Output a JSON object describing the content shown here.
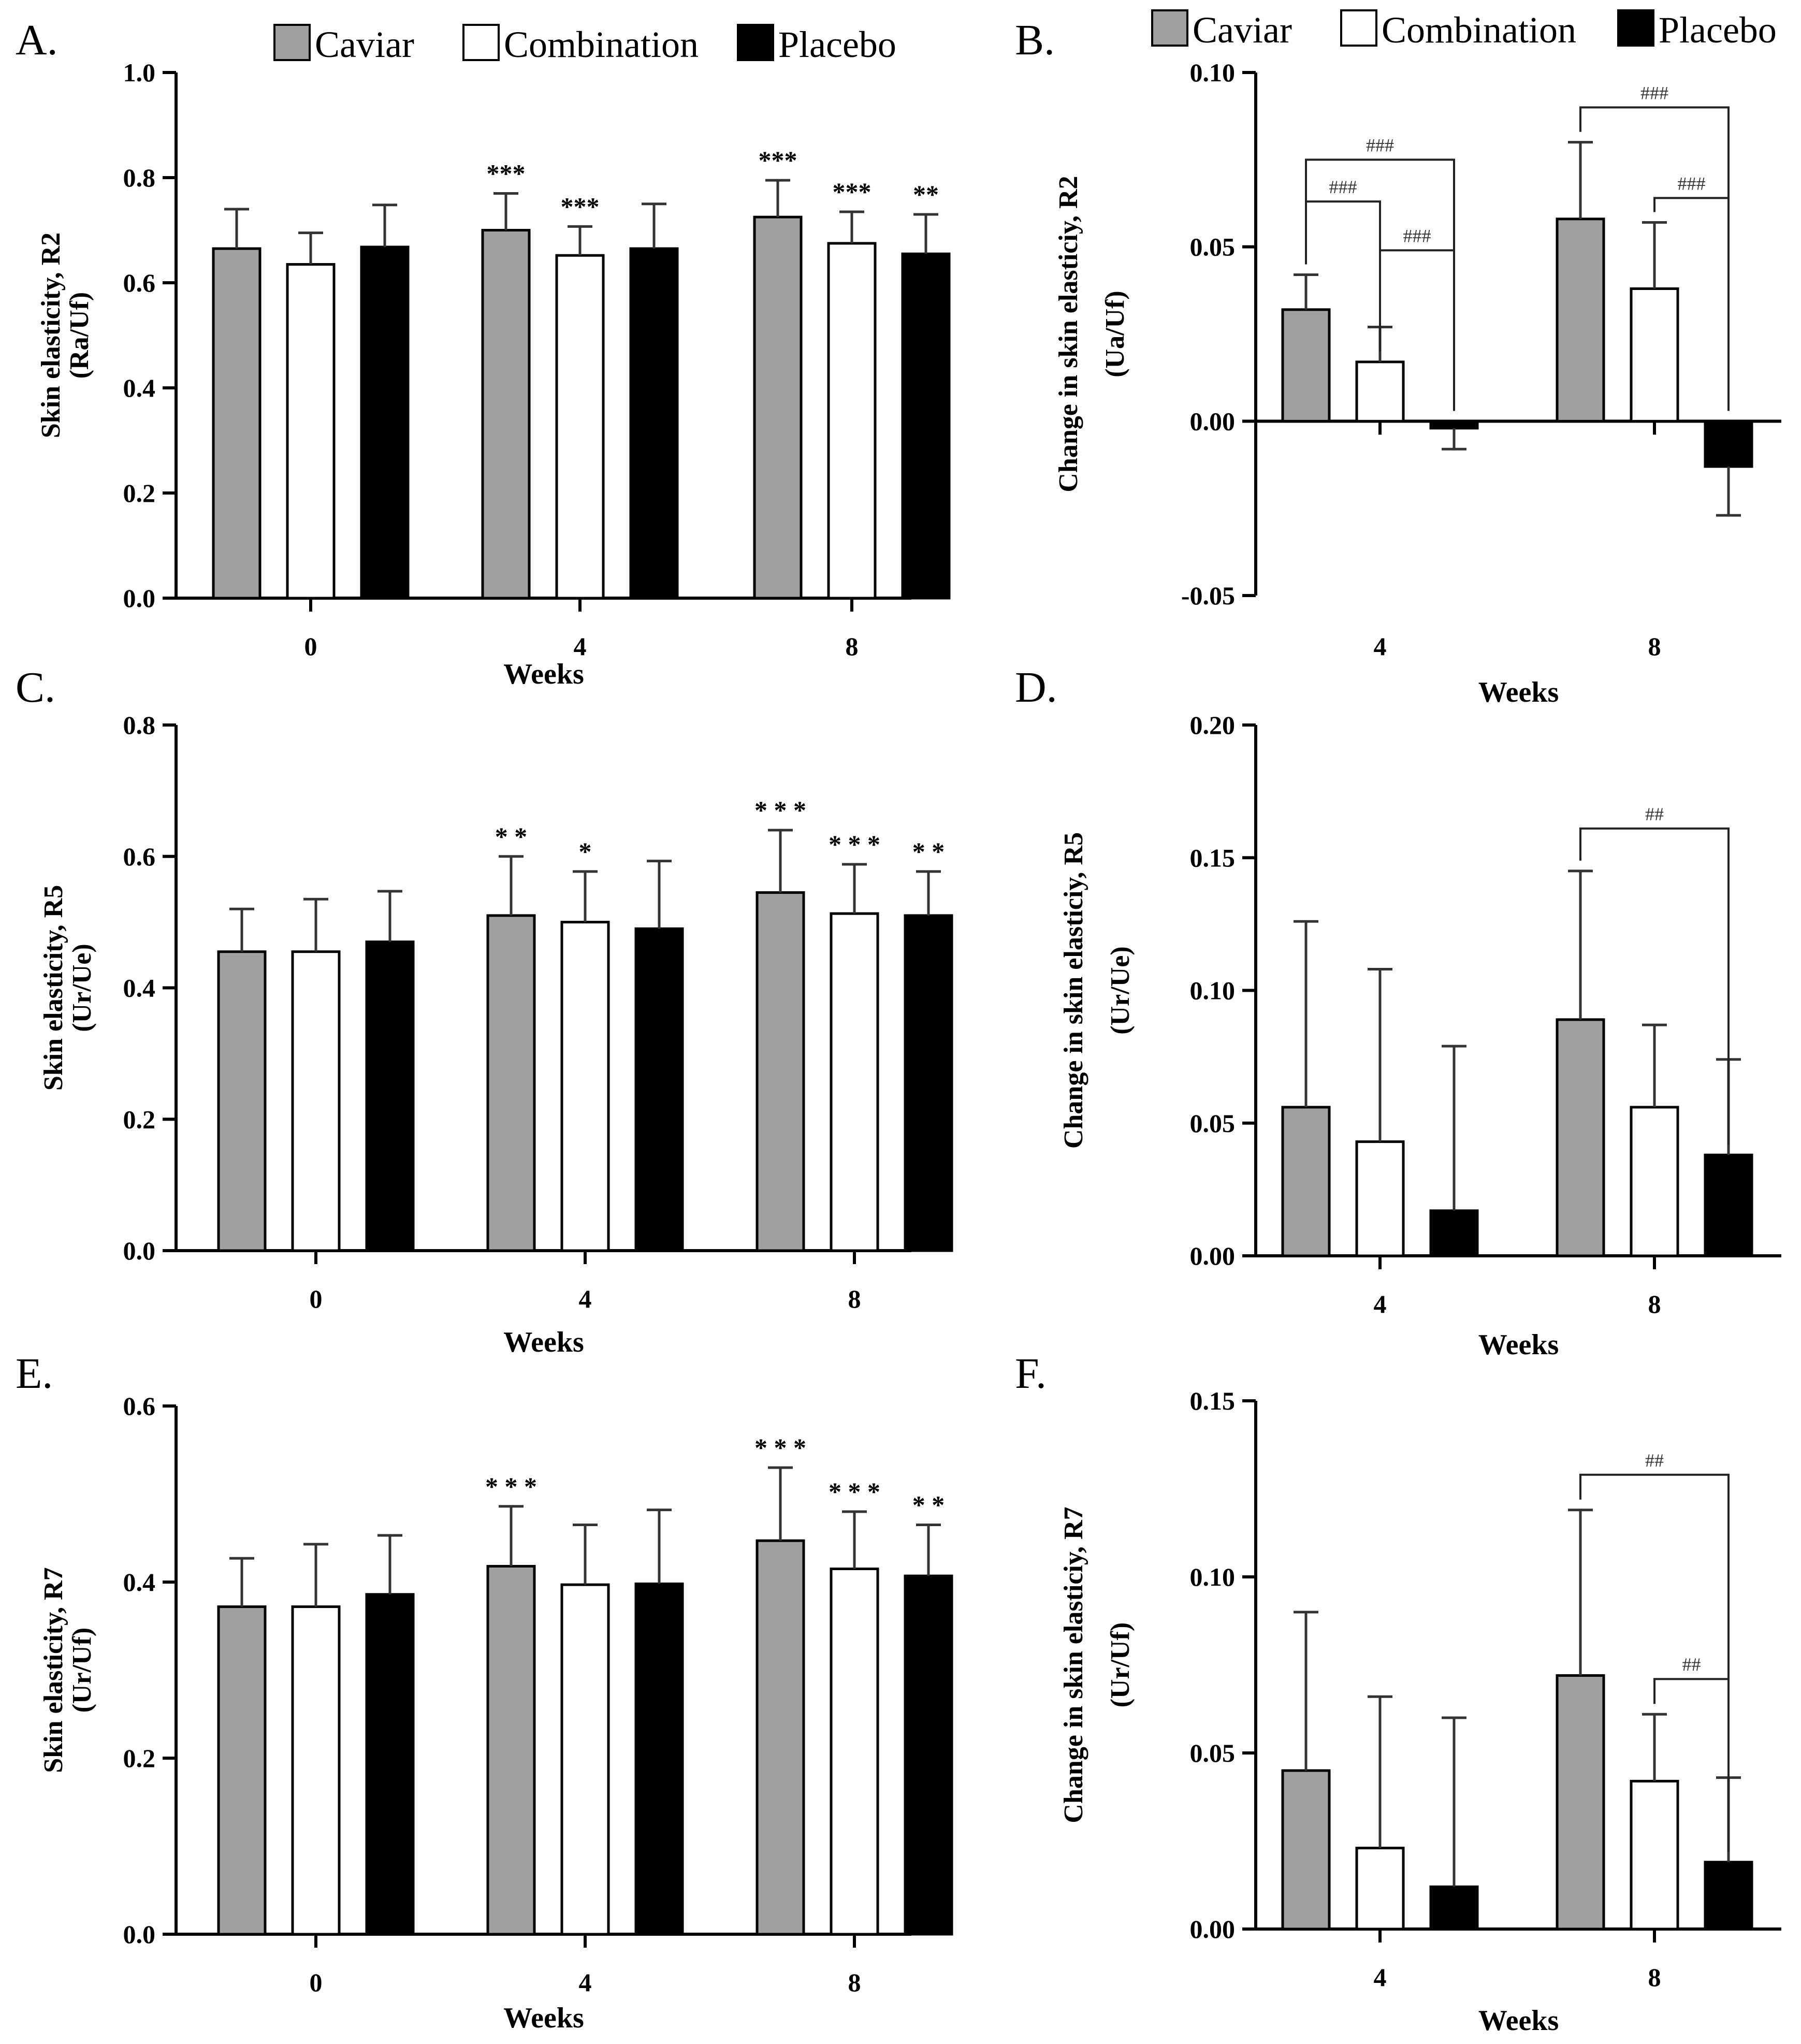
{
  "legend": [
    {
      "name": "Caviar",
      "color": "#a0a0a0"
    },
    {
      "name": "Combination",
      "color": "#ffffff"
    },
    {
      "name": "Placebo",
      "color": "#000000"
    }
  ],
  "chart_data": [
    {
      "id": "A",
      "panel_label": "A.",
      "type": "bar",
      "title": "",
      "xlabel": "Weeks",
      "ylabel_lines": [
        "Skin elasticity, R2",
        "(Ra/Uf)"
      ],
      "categories": [
        "0",
        "4",
        "8"
      ],
      "ylim": [
        0,
        1.0
      ],
      "yticks": [
        "0.0",
        "0.2",
        "0.4",
        "0.6",
        "0.8",
        "1.0"
      ],
      "ytick_values": [
        0,
        0.2,
        0.4,
        0.6,
        0.8,
        1.0
      ],
      "series": [
        {
          "name": "Caviar",
          "values": [
            0.665,
            0.7,
            0.725
          ],
          "errors": [
            0.075,
            0.07,
            0.07
          ]
        },
        {
          "name": "Combination",
          "values": [
            0.635,
            0.652,
            0.675
          ],
          "errors": [
            0.06,
            0.055,
            0.06
          ]
        },
        {
          "name": "Placebo",
          "values": [
            0.668,
            0.665,
            0.655
          ],
          "errors": [
            0.08,
            0.085,
            0.075
          ]
        }
      ],
      "annotations": [
        {
          "series": 0,
          "category": 1,
          "text": "***"
        },
        {
          "series": 1,
          "category": 1,
          "text": "***"
        },
        {
          "series": 0,
          "category": 2,
          "text": "***"
        },
        {
          "series": 1,
          "category": 2,
          "text": "***"
        },
        {
          "series": 2,
          "category": 2,
          "text": "**"
        }
      ],
      "brackets": []
    },
    {
      "id": "B",
      "panel_label": "B.",
      "type": "bar",
      "title": "",
      "xlabel": "Weeks",
      "ylabel_lines": [
        "Change in skin elasticiy, R2",
        "(Ua/Uf)"
      ],
      "categories": [
        "4",
        "8"
      ],
      "ylim": [
        -0.05,
        0.1
      ],
      "yticks": [
        "-0.05",
        "0.00",
        "0.05",
        "0.10"
      ],
      "ytick_values": [
        -0.05,
        0.0,
        0.05,
        0.1
      ],
      "series": [
        {
          "name": "Caviar",
          "values": [
            0.032,
            0.058
          ],
          "errors": [
            0.01,
            0.022
          ]
        },
        {
          "name": "Combination",
          "values": [
            0.017,
            0.038
          ],
          "errors": [
            0.01,
            0.019
          ]
        },
        {
          "name": "Placebo",
          "values": [
            -0.002,
            -0.013
          ],
          "errors": [
            0.006,
            0.014
          ]
        }
      ],
      "annotations": [],
      "brackets": [
        {
          "category": 0,
          "from": 0,
          "to": 1,
          "level": 0.063,
          "text": "###"
        },
        {
          "category": 0,
          "from": 1,
          "to": 2,
          "level": 0.049,
          "text": "###"
        },
        {
          "category": 0,
          "from": 0,
          "to": 2,
          "level": 0.075,
          "text": "###"
        },
        {
          "category": 1,
          "from": 1,
          "to": 2,
          "level": 0.064,
          "text": "###"
        },
        {
          "category": 1,
          "from": 0,
          "to": 2,
          "level": 0.09,
          "text": "###"
        }
      ]
    },
    {
      "id": "C",
      "panel_label": "C.",
      "type": "bar",
      "title": "",
      "xlabel": "Weeks",
      "ylabel_lines": [
        "Skin elasticity, R5",
        "(Ur/Ue)"
      ],
      "categories": [
        "0",
        "4",
        "8"
      ],
      "ylim": [
        0,
        0.8
      ],
      "yticks": [
        "0.0",
        "0.2",
        "0.4",
        "0.6",
        "0.8"
      ],
      "ytick_values": [
        0,
        0.2,
        0.4,
        0.6,
        0.8
      ],
      "series": [
        {
          "name": "Caviar",
          "values": [
            0.455,
            0.51,
            0.545
          ],
          "errors": [
            0.065,
            0.09,
            0.095
          ]
        },
        {
          "name": "Combination",
          "values": [
            0.455,
            0.5,
            0.513
          ],
          "errors": [
            0.08,
            0.077,
            0.075
          ]
        },
        {
          "name": "Placebo",
          "values": [
            0.47,
            0.49,
            0.51
          ],
          "errors": [
            0.077,
            0.103,
            0.067
          ]
        }
      ],
      "annotations": [
        {
          "series": 0,
          "category": 1,
          "text": "* *"
        },
        {
          "series": 1,
          "category": 1,
          "text": "*"
        },
        {
          "series": 0,
          "category": 2,
          "text": "* * *"
        },
        {
          "series": 1,
          "category": 2,
          "text": "* * *"
        },
        {
          "series": 2,
          "category": 2,
          "text": "* *"
        }
      ],
      "brackets": []
    },
    {
      "id": "D",
      "panel_label": "D.",
      "type": "bar",
      "title": "",
      "xlabel": "Weeks",
      "ylabel_lines": [
        "Change in skin elasticiy, R5",
        "(Ur/Ue)"
      ],
      "categories": [
        "4",
        "8"
      ],
      "ylim": [
        0,
        0.2
      ],
      "yticks": [
        "0.00",
        "0.05",
        "0.10",
        "0.15",
        "0.20"
      ],
      "ytick_values": [
        0,
        0.05,
        0.1,
        0.15,
        0.2
      ],
      "series": [
        {
          "name": "Caviar",
          "values": [
            0.056,
            0.089
          ],
          "errors": [
            0.07,
            0.056
          ]
        },
        {
          "name": "Combination",
          "values": [
            0.043,
            0.056
          ],
          "errors": [
            0.065,
            0.031
          ]
        },
        {
          "name": "Placebo",
          "values": [
            0.017,
            0.038
          ],
          "errors": [
            0.062,
            0.036
          ]
        }
      ],
      "annotations": [],
      "brackets": [
        {
          "category": 1,
          "from": 0,
          "to": 2,
          "level": 0.161,
          "text": "##"
        }
      ]
    },
    {
      "id": "E",
      "panel_label": "E.",
      "type": "bar",
      "title": "",
      "xlabel": "Weeks",
      "ylabel_lines": [
        "Skin elasticity, R7",
        "(Ur/Uf)"
      ],
      "categories": [
        "0",
        "4",
        "8"
      ],
      "ylim": [
        0,
        0.6
      ],
      "yticks": [
        "0.0",
        "0.2",
        "0.4",
        "0.6"
      ],
      "ytick_values": [
        0,
        0.2,
        0.4,
        0.6
      ],
      "series": [
        {
          "name": "Caviar",
          "values": [
            0.372,
            0.418,
            0.447
          ],
          "errors": [
            0.055,
            0.068,
            0.083
          ]
        },
        {
          "name": "Combination",
          "values": [
            0.372,
            0.397,
            0.415
          ],
          "errors": [
            0.071,
            0.068,
            0.065
          ]
        },
        {
          "name": "Placebo",
          "values": [
            0.386,
            0.398,
            0.407
          ],
          "errors": [
            0.067,
            0.084,
            0.058
          ]
        }
      ],
      "annotations": [
        {
          "series": 0,
          "category": 1,
          "text": "* * *"
        },
        {
          "series": 0,
          "category": 2,
          "text": "* * *"
        },
        {
          "series": 1,
          "category": 2,
          "text": "* * *"
        },
        {
          "series": 2,
          "category": 2,
          "text": "* *"
        }
      ],
      "brackets": []
    },
    {
      "id": "F",
      "panel_label": "F.",
      "type": "bar",
      "title": "",
      "xlabel": "Weeks",
      "ylabel_lines": [
        "Change in skin elasticiy, R7",
        "(Ur/Uf)"
      ],
      "categories": [
        "4",
        "8"
      ],
      "ylim": [
        0,
        0.15
      ],
      "yticks": [
        "0.00",
        "0.05",
        "0.10",
        "0.15"
      ],
      "ytick_values": [
        0,
        0.05,
        0.1,
        0.15
      ],
      "series": [
        {
          "name": "Caviar",
          "values": [
            0.045,
            0.072
          ],
          "errors": [
            0.045,
            0.047
          ]
        },
        {
          "name": "Combination",
          "values": [
            0.023,
            0.042
          ],
          "errors": [
            0.043,
            0.019
          ]
        },
        {
          "name": "Placebo",
          "values": [
            0.012,
            0.019
          ],
          "errors": [
            0.048,
            0.024
          ]
        }
      ],
      "annotations": [],
      "brackets": [
        {
          "category": 1,
          "from": 0,
          "to": 2,
          "level": 0.129,
          "text": "##"
        },
        {
          "category": 1,
          "from": 1,
          "to": 2,
          "level": 0.071,
          "text": "##"
        }
      ]
    }
  ]
}
